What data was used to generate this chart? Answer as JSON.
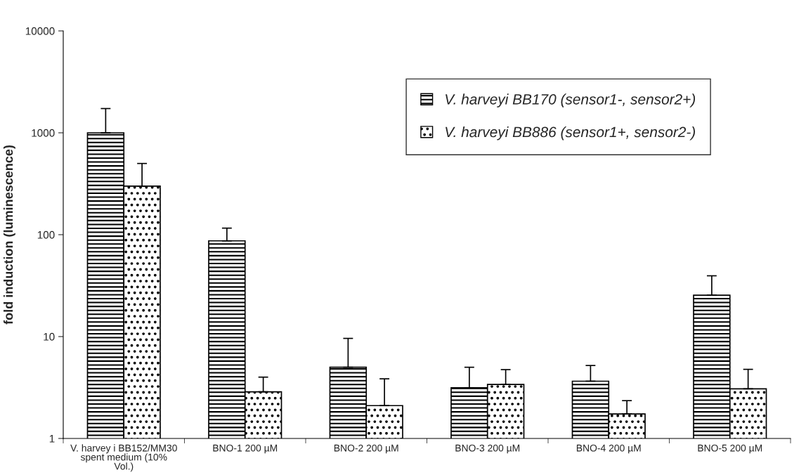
{
  "chart_data": {
    "type": "bar",
    "ylabel": "fold induction (luminescence)",
    "categories": [
      "V. harvey i BB152/MM30\nspent medium (10%\nVol.)",
      "BNO-1 200 µM",
      "BNO-2 200 µM",
      "BNO-3 200 µM",
      "BNO-4 200 µM",
      "BNO-5 200 µM"
    ],
    "series": [
      {
        "name": "V. harveyi BB170 (sensor1-, sensor2+)",
        "color": "#000000",
        "values": [
          1000,
          87,
          5.0,
          3.15,
          3.65,
          25.5
        ],
        "errors": [
          [
            1000,
            1730
          ],
          [
            87,
            116
          ],
          [
            5.0,
            9.6
          ],
          [
            3.15,
            5.0
          ],
          [
            3.65,
            5.2
          ],
          [
            25.5,
            39.5
          ]
        ]
      },
      {
        "name": "V. harveyi BB886 (sensor1+, sensor2-)",
        "color": "#000000",
        "values": [
          300,
          2.87,
          2.1,
          3.39,
          1.74,
          3.07
        ],
        "errors": [
          [
            300,
            500
          ],
          [
            2.87,
            4.0
          ],
          [
            2.1,
            3.85
          ],
          [
            3.39,
            4.74
          ],
          [
            1.74,
            2.35
          ],
          [
            3.07,
            4.77
          ]
        ]
      }
    ],
    "log": "y",
    "ylim": [
      1,
      10000
    ],
    "yticks": [
      1,
      10,
      100,
      1000,
      10000
    ],
    "grid": false,
    "legend": "top right"
  }
}
